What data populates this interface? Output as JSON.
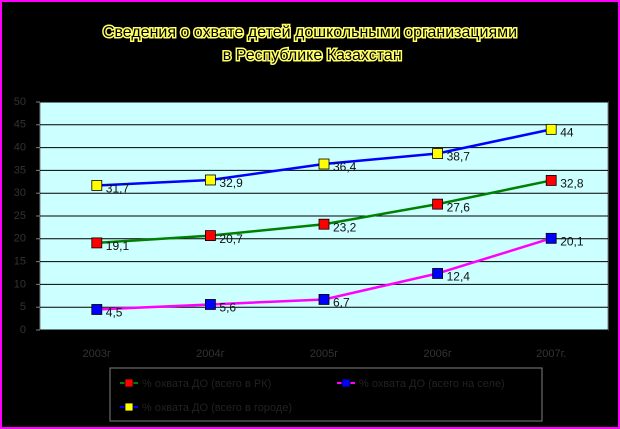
{
  "chart_data": {
    "type": "line",
    "title": "Сведения о охвате детей дошкольными организациями в Республике Казахстан",
    "categories": [
      "2003г",
      "2004г",
      "2005г",
      "2006г",
      "2007г."
    ],
    "series": [
      {
        "name": "% охвата ДО (всего в РК)",
        "color": "#008000",
        "marker_color": "#ff0000",
        "values": [
          19.1,
          20.7,
          23.2,
          27.6,
          32.8
        ],
        "value_labels": [
          "19,1",
          "20,7",
          "23,2",
          "27,6",
          "32,8"
        ]
      },
      {
        "name": "% охвата ДО (всего на селе)",
        "color": "#ff00ff",
        "marker_color": "#0000ff",
        "values": [
          4.5,
          5.6,
          6.7,
          12.4,
          20.1
        ],
        "value_labels": [
          "4,5",
          "5,6",
          "6,7",
          "12,4",
          "20,1"
        ]
      },
      {
        "name": "% охвата ДО (всего в городе)",
        "color": "#0000ff",
        "marker_color": "#ffff00",
        "values": [
          31.7,
          32.9,
          36.4,
          38.7,
          44
        ],
        "value_labels": [
          "31,7",
          "32,9",
          "36,4",
          "38,7",
          "44"
        ]
      }
    ],
    "ylim": [
      0,
      50
    ],
    "yticks": [
      0,
      5,
      10,
      15,
      20,
      25,
      30,
      35,
      40,
      45,
      50
    ],
    "grid": true,
    "plot_background": "#ccffff",
    "background": "#000000",
    "border_color": "#ff00ff"
  }
}
